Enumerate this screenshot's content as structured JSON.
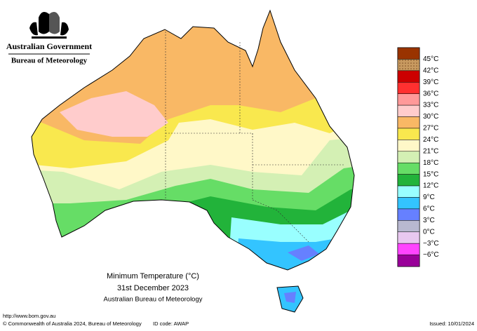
{
  "header": {
    "government": "Australian Government",
    "bureau": "Bureau of Meteorology"
  },
  "caption": {
    "title": "Minimum Temperature (°C)",
    "date": "31st December 2023",
    "source": "Australian Bureau of Meteorology"
  },
  "legend": {
    "labels": [
      "45°C",
      "42°C",
      "39°C",
      "36°C",
      "33°C",
      "30°C",
      "27°C",
      "24°C",
      "21°C",
      "18°C",
      "15°C",
      "12°C",
      "9°C",
      "6°C",
      "3°C",
      "0°C",
      "−3°C",
      "−6°C"
    ],
    "colors": [
      "#993300",
      "#b8864b",
      "#cc0000",
      "#ff3030",
      "#ff9999",
      "#ffcccc",
      "#f9b865",
      "#f9e84e",
      "#fff8c8",
      "#d4f0b4",
      "#66dd66",
      "#22b33a",
      "#99ffff",
      "#33c4ff",
      "#6680ff",
      "#b8b8d0",
      "#e8c8f0",
      "#ff44ff",
      "#990099"
    ]
  },
  "footer": {
    "url": "http://www.bom.gov.au",
    "copyright": "© Commonwealth of Australia 2024, Bureau of Meteorology",
    "id": "ID code: AWAP",
    "issued": "Issued: 10/01/2024"
  }
}
